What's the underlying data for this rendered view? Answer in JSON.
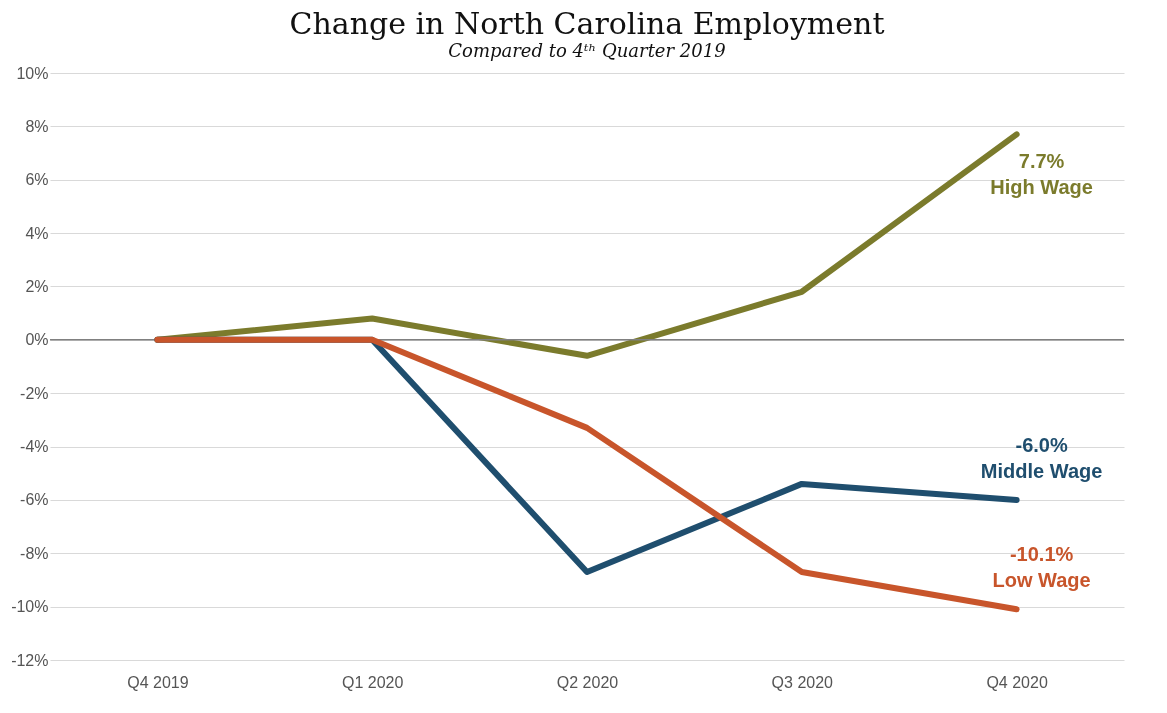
{
  "chart_data": {
    "type": "line",
    "title": "Change in North Carolina Employment",
    "subtitle": "Compared to 4ᵗʰ Quarter 2019",
    "categories": [
      "Q4 2019",
      "Q1 2020",
      "Q2 2020",
      "Q3 2020",
      "Q4 2020"
    ],
    "series": [
      {
        "name": "High Wage",
        "color": "#7b7b2c",
        "values": [
          0,
          0.8,
          -0.6,
          1.8,
          7.7
        ],
        "value_labels": [
          null,
          null,
          null,
          null,
          "7.7%"
        ]
      },
      {
        "name": "Middle Wage",
        "color": "#1f4e6e",
        "values": [
          0,
          0,
          -8.7,
          -5.4,
          -6.0
        ],
        "value_labels": [
          null,
          null,
          null,
          null,
          "-6.0%"
        ]
      },
      {
        "name": "Low Wage",
        "color": "#c8552b",
        "values": [
          0,
          0,
          -3.3,
          -8.7,
          -10.1
        ],
        "value_labels": [
          null,
          null,
          null,
          null,
          "-10.1%"
        ]
      }
    ],
    "ylim": [
      -12,
      10
    ],
    "yticks": [
      {
        "value": -12,
        "label": "-12%"
      },
      {
        "value": -10,
        "label": "-10%"
      },
      {
        "value": -8,
        "label": "-8%"
      },
      {
        "value": -6,
        "label": "-6%"
      },
      {
        "value": -4,
        "label": "-4%"
      },
      {
        "value": -2,
        "label": "-2%"
      },
      {
        "value": 0,
        "label": "0%"
      },
      {
        "value": 2,
        "label": "2%"
      },
      {
        "value": 4,
        "label": "4%"
      },
      {
        "value": 6,
        "label": "6%"
      },
      {
        "value": 8,
        "label": "8%"
      },
      {
        "value": 10,
        "label": "10%"
      }
    ],
    "ref_lines": [
      {
        "axis": "y",
        "value": 0,
        "color": "#808080"
      }
    ],
    "grid": "y",
    "legend": false,
    "marker": "none",
    "line_style": "solid"
  }
}
